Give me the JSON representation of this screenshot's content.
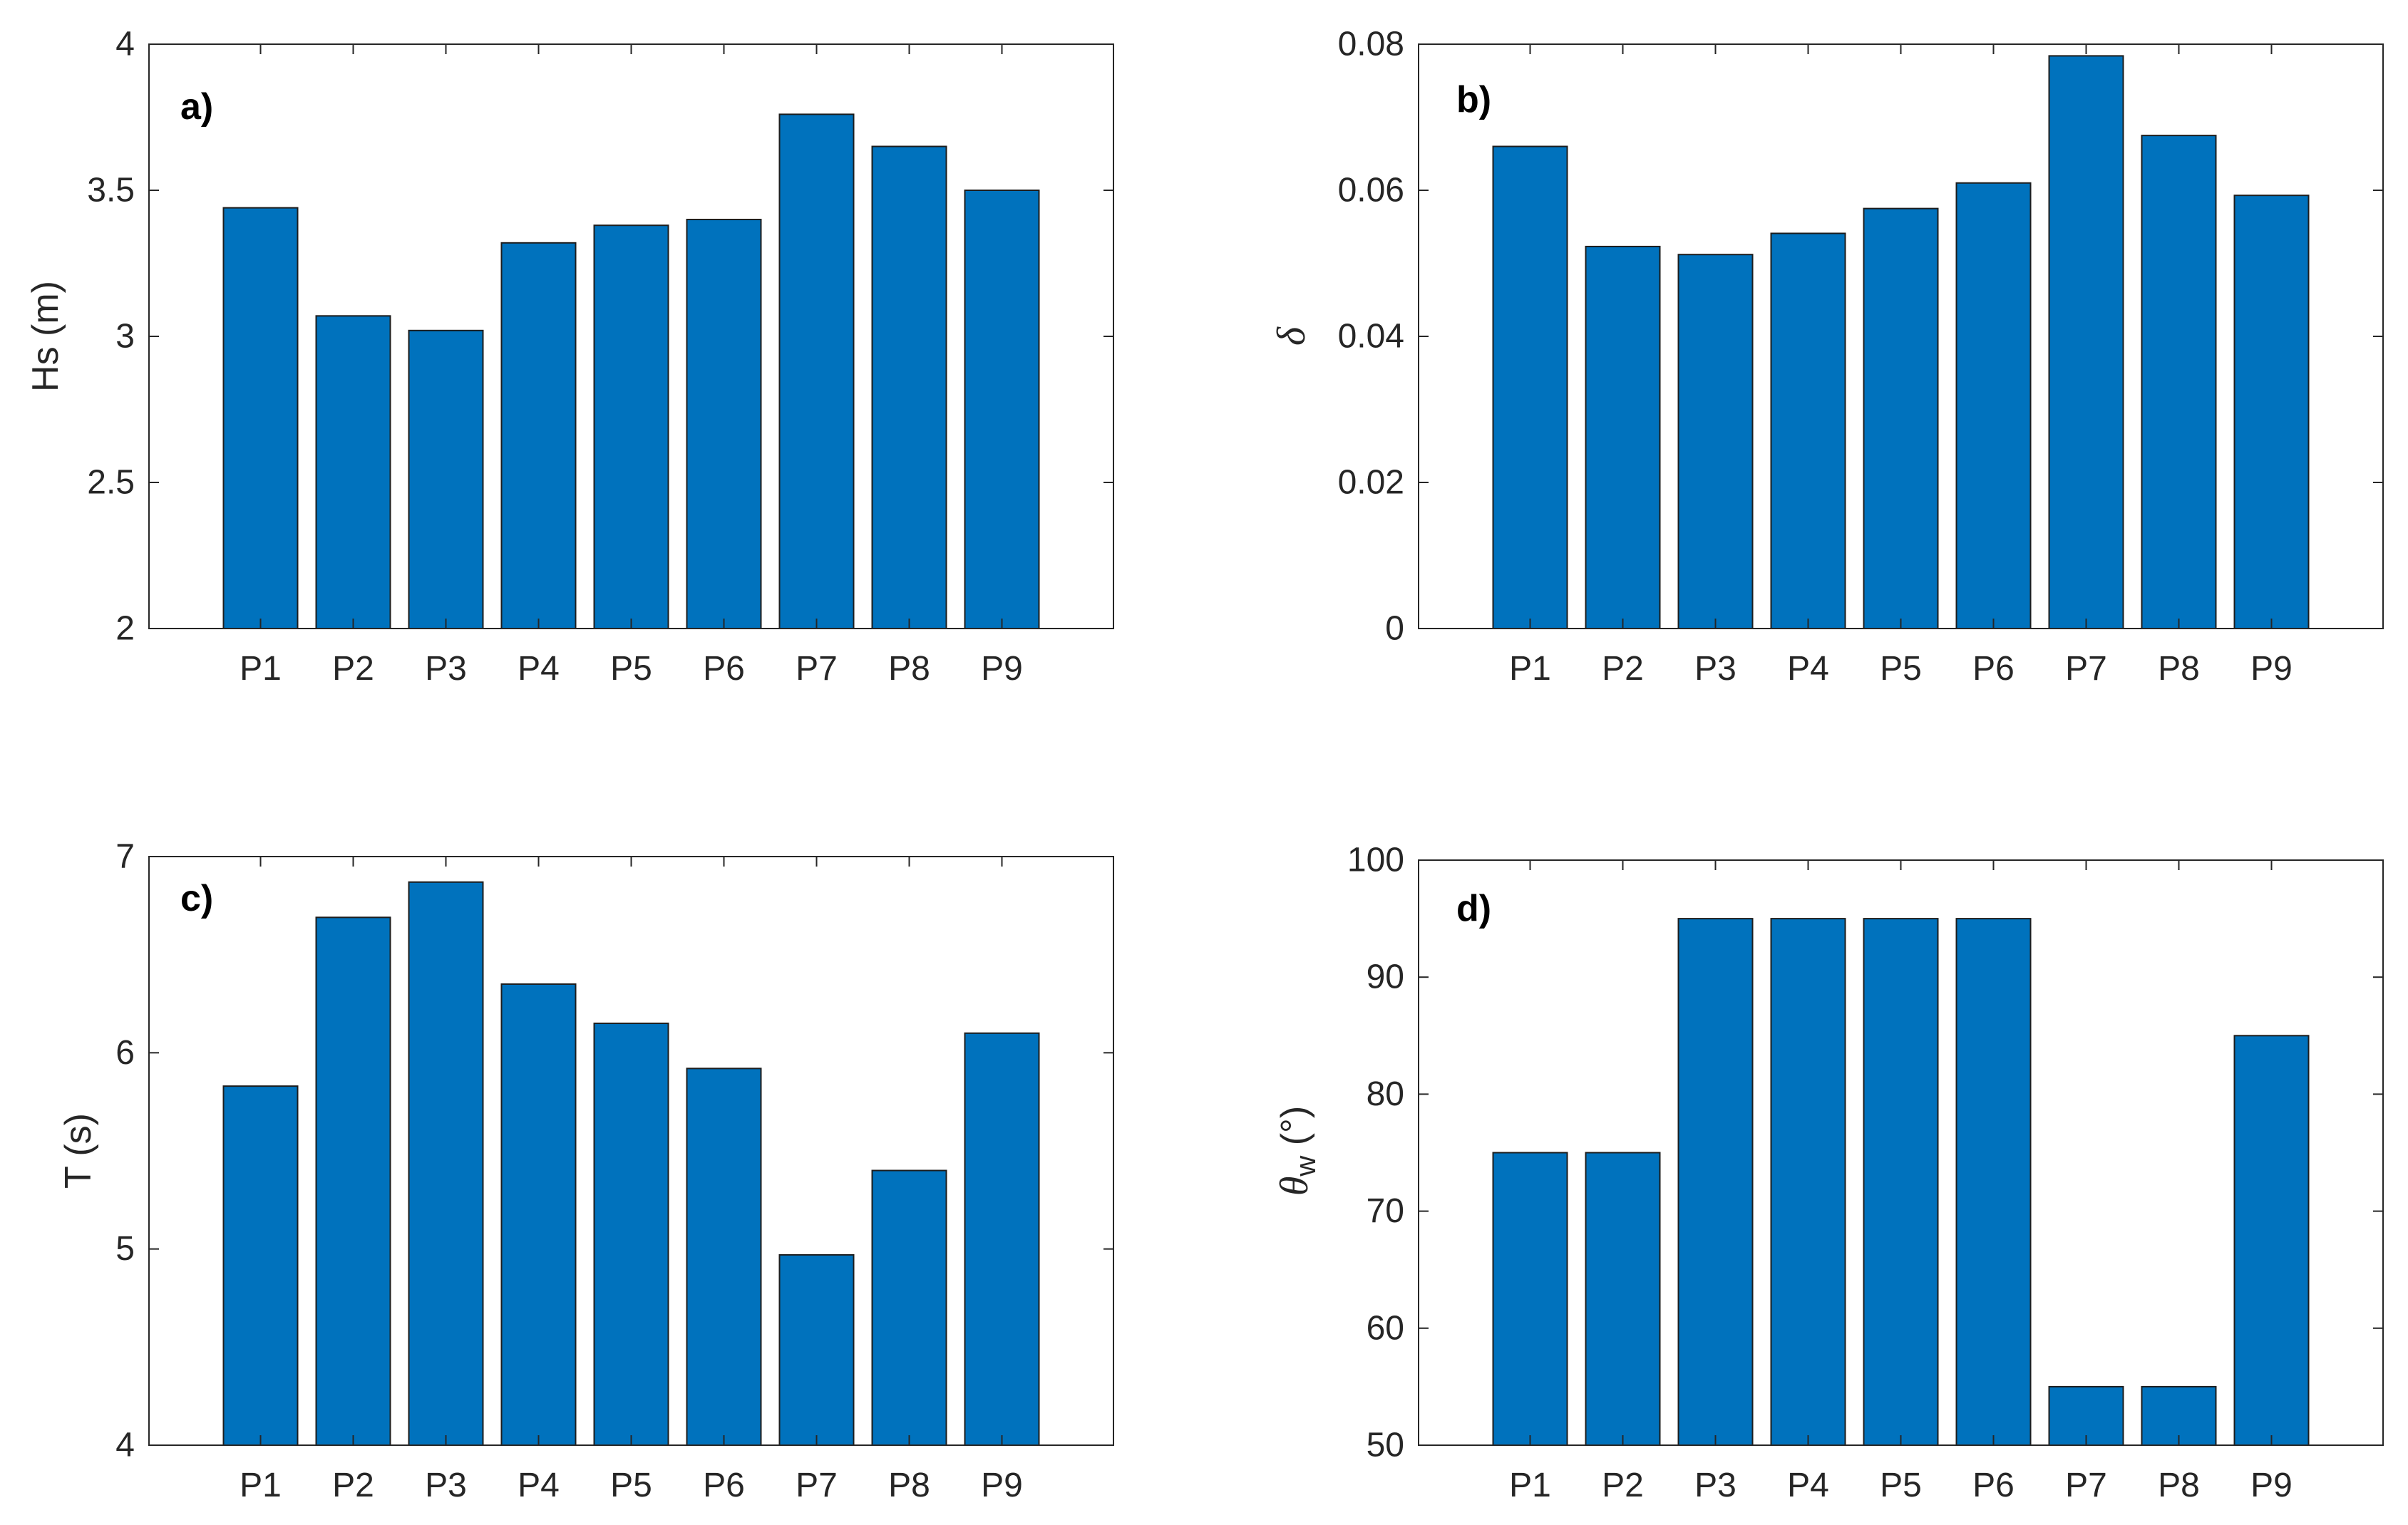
{
  "colors": {
    "bar": "#0072bd",
    "axis": "#262626"
  },
  "chart_data": [
    {
      "type": "bar",
      "panel_label": "a)",
      "title": "",
      "xlabel": "",
      "ylabel": "Hs (m)",
      "ylim": [
        2,
        4
      ],
      "yticks": [
        2,
        2.5,
        3,
        3.5,
        4
      ],
      "ytick_labels": [
        "2",
        "2.5",
        "3",
        "3.5",
        "4"
      ],
      "categories": [
        "P1",
        "P2",
        "P3",
        "P4",
        "P5",
        "P6",
        "P7",
        "P8",
        "P9"
      ],
      "values": [
        3.44,
        3.07,
        3.02,
        3.32,
        3.38,
        3.4,
        3.76,
        3.65,
        3.5
      ]
    },
    {
      "type": "bar",
      "panel_label": "b)",
      "title": "",
      "xlabel": "",
      "ylabel": "δ",
      "ylim": [
        0,
        0.08
      ],
      "yticks": [
        0,
        0.02,
        0.04,
        0.06,
        0.08
      ],
      "ytick_labels": [
        "0",
        "0.02",
        "0.04",
        "0.06",
        "0.08"
      ],
      "categories": [
        "P1",
        "P2",
        "P3",
        "P4",
        "P5",
        "P6",
        "P7",
        "P8",
        "P9"
      ],
      "values": [
        0.066,
        0.0523,
        0.0512,
        0.0541,
        0.0575,
        0.061,
        0.0784,
        0.0675,
        0.0593
      ]
    },
    {
      "type": "bar",
      "panel_label": "c)",
      "title": "",
      "xlabel": "",
      "ylabel": "T (s)",
      "ylim": [
        4,
        7
      ],
      "yticks": [
        4,
        5,
        6,
        7
      ],
      "ytick_labels": [
        "4",
        "5",
        "6",
        "7"
      ],
      "categories": [
        "P1",
        "P2",
        "P3",
        "P4",
        "P5",
        "P6",
        "P7",
        "P8",
        "P9"
      ],
      "values": [
        5.83,
        6.69,
        6.87,
        6.35,
        6.15,
        5.92,
        4.97,
        5.4,
        6.1
      ]
    },
    {
      "type": "bar",
      "panel_label": "d)",
      "title": "",
      "xlabel": "",
      "ylabel_main": "θ",
      "ylabel_sub": "w",
      "ylabel_unit": " (°)",
      "ylim": [
        50,
        100
      ],
      "yticks": [
        50,
        60,
        70,
        80,
        90,
        100
      ],
      "ytick_labels": [
        "50",
        "60",
        "70",
        "80",
        "90",
        "100"
      ],
      "categories": [
        "P1",
        "P2",
        "P3",
        "P4",
        "P5",
        "P6",
        "P7",
        "P8",
        "P9"
      ],
      "values": [
        75,
        75,
        95,
        95,
        95,
        95,
        55,
        55,
        85
      ]
    }
  ]
}
